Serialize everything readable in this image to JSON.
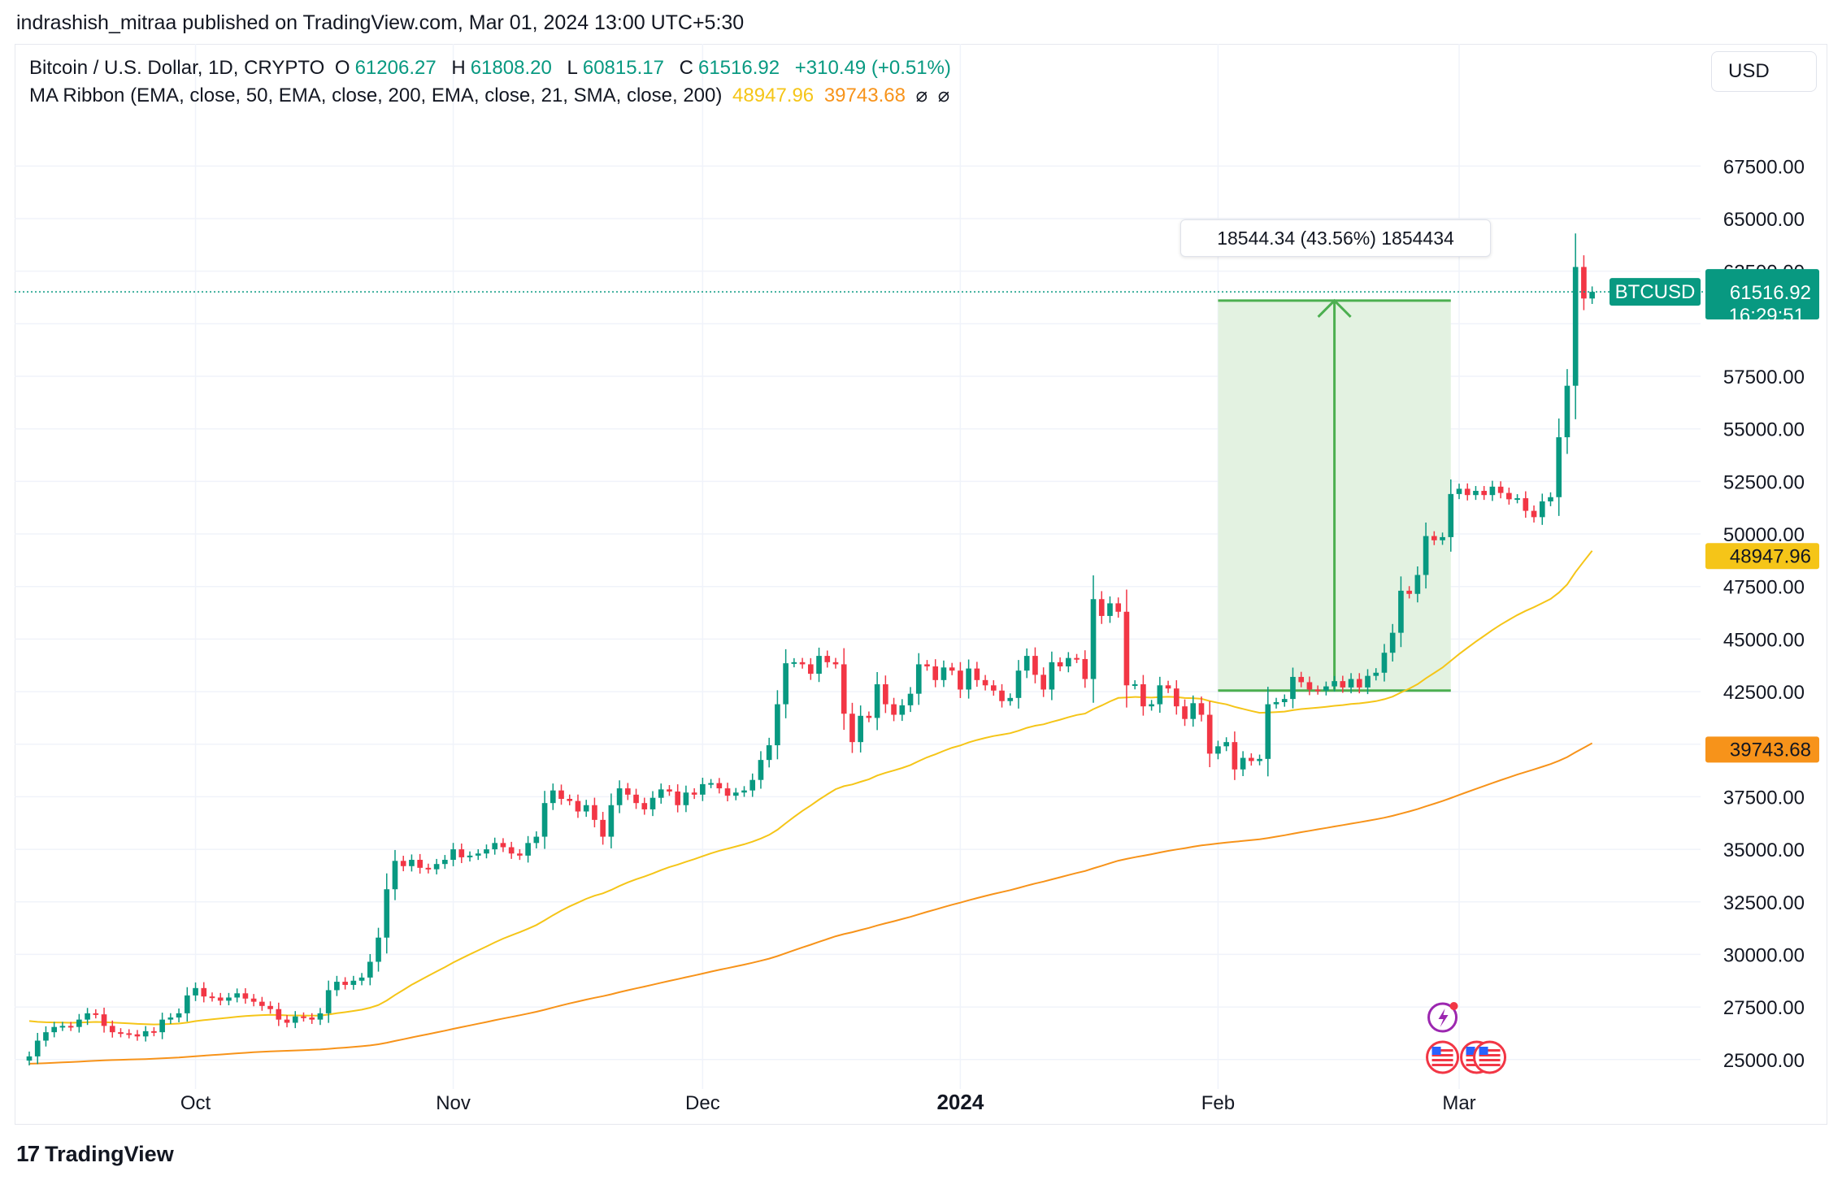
{
  "publisher_line": "indrashish_mitraa published on TradingView.com, Mar 01, 2024 13:00 UTC+5:30",
  "legend": {
    "symbol": "Bitcoin / U.S. Dollar, 1D, CRYPTO",
    "o_label": "O",
    "o_value": "61206.27",
    "h_label": "H",
    "h_value": "61808.20",
    "l_label": "L",
    "l_value": "60815.17",
    "c_label": "C",
    "c_value": "61516.92",
    "change": "+310.49 (+0.51%)",
    "ma_label": "MA Ribbon (EMA, close, 50, EMA, close, 200, EMA, close, 21, SMA, close, 200)",
    "ma_value_1": "48947.96",
    "ma_value_2": "39743.68",
    "hidden_mark_1": "⌀",
    "hidden_mark_2": "⌀"
  },
  "currency_button": "USD",
  "footer_brand": "TradingView",
  "footer_logo": "17",
  "colors": {
    "up": "#089981",
    "down": "#f23645",
    "ema50": "#f5c518",
    "ema200": "#f7931a",
    "range_fill": "#e3f2e1",
    "range_line": "#4caf50",
    "price_tag": "#089981"
  },
  "chart_data": {
    "type": "candlestick",
    "symbol_tag": "BTCUSD",
    "last_price": "61516.92",
    "countdown": "16:29:51",
    "ylim": [
      23600,
      69600
    ],
    "y_ticks": [
      "67500.00",
      "65000.00",
      "62500.00",
      "57500.00",
      "55000.00",
      "52500.00",
      "50000.00",
      "47500.00",
      "45000.00",
      "42500.00",
      "37500.00",
      "35000.00",
      "32500.00",
      "30000.00",
      "27500.00",
      "25000.00"
    ],
    "y_tick_values": [
      67500,
      65000,
      62500,
      57500,
      55000,
      52500,
      50000,
      47500,
      45000,
      42500,
      37500,
      35000,
      32500,
      30000,
      27500,
      25000
    ],
    "x_ticks": [
      {
        "label": "Oct",
        "day": "2023-10-01",
        "bold": false
      },
      {
        "label": "Nov",
        "day": "2023-11-01",
        "bold": false
      },
      {
        "label": "Dec",
        "day": "2023-12-01",
        "bold": false
      },
      {
        "label": "2024",
        "day": "2024-01-01",
        "bold": true
      },
      {
        "label": "Feb",
        "day": "2024-02-01",
        "bold": false
      },
      {
        "label": "Mar",
        "day": "2024-03-01",
        "bold": false
      }
    ],
    "x_start": "2023-09-11",
    "x_end": "2024-03-01",
    "closes": [
      25150,
      25900,
      26300,
      26550,
      26600,
      26550,
      26900,
      27200,
      27150,
      26600,
      26300,
      26250,
      26200,
      26100,
      26350,
      26300,
      26900,
      27000,
      27200,
      28050,
      28400,
      28000,
      27950,
      27800,
      27950,
      28150,
      27900,
      27750,
      27550,
      27400,
      26900,
      26750,
      27050,
      27000,
      26900,
      27200,
      28300,
      28700,
      28550,
      28750,
      28900,
      29650,
      30800,
      33100,
      34450,
      34200,
      34500,
      34120,
      34050,
      34300,
      34500,
      35000,
      34620,
      34700,
      34800,
      35000,
      35300,
      35100,
      34800,
      34700,
      35300,
      35600,
      37200,
      37800,
      37400,
      37300,
      36800,
      37100,
      36400,
      35600,
      37100,
      37900,
      37600,
      37200,
      36900,
      37450,
      37850,
      37750,
      37100,
      37700,
      37600,
      38100,
      38150,
      37900,
      37550,
      37700,
      37800,
      38300,
      39250,
      39950,
      41900,
      43850,
      43900,
      43800,
      43350,
      44200,
      43900,
      43800,
      41450,
      40100,
      41350,
      41250,
      42850,
      41900,
      41400,
      41850,
      42400,
      43800,
      43700,
      43050,
      43650,
      43500,
      42600,
      43600,
      43050,
      42800,
      42550,
      42050,
      42200,
      43500,
      44200,
      43300,
      42600,
      43900,
      43700,
      44100,
      44050,
      43100,
      46900,
      46100,
      46700,
      46300,
      42800,
      42850,
      41800,
      41900,
      42800,
      42650,
      41800,
      41200,
      41950,
      41400,
      39550,
      39900,
      40100,
      38800,
      39350,
      39200,
      39300,
      41900,
      42000,
      42150,
      43200,
      42950,
      42600,
      42550,
      42750,
      43000,
      42700,
      43100,
      42700,
      43250,
      43400,
      44350,
      45300,
      47300,
      47150,
      48050,
      49900,
      49700,
      49850,
      51900,
      52150,
      51850,
      52050,
      51850,
      52250,
      51950,
      51650,
      51700,
      51100,
      50800,
      51550,
      51750,
      54600,
      57050,
      62700,
      61200,
      61516
    ]
  }
}
